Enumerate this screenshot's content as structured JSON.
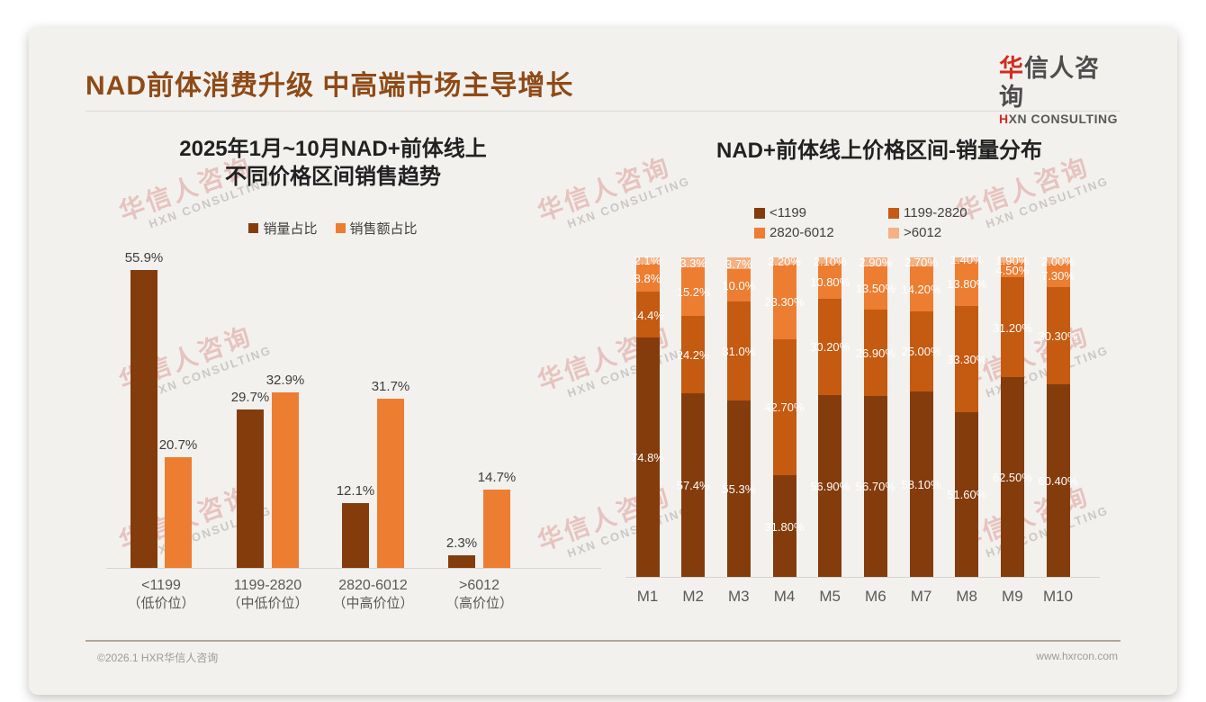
{
  "slide": {
    "title": "NAD前体消费升级 中高端市场主导增长",
    "logo": {
      "cn_first": "华",
      "cn_rest": "信人咨询",
      "en_first": "H",
      "en_rest": "XN CONSULTING"
    },
    "watermark": {
      "cn": "华信人咨询",
      "en": "HXN CONSULTING"
    },
    "footer": {
      "left": "©2026.1 HXR华信人咨询",
      "right": "www.hxrcon.com"
    }
  },
  "colors": {
    "title_brown": "#8e4a17",
    "logo_red": "#d22d21",
    "dark_brown": "#843C0C",
    "burnt_orange": "#C55A11",
    "orange": "#ED7D31",
    "light_orange": "#F4B183",
    "slide_bg": "#f2f1ee"
  },
  "chart_data": [
    {
      "type": "bar",
      "title": "2025年1月~10月NAD+前体线上\n不同价格区间销售趋势",
      "categories": [
        "<1199",
        "1199-2820",
        "2820-6012",
        ">6012"
      ],
      "category_tiers": [
        "（低价位）",
        "（中低价位）",
        "（中高价位）",
        "（高价位）"
      ],
      "ylim": [
        0,
        60
      ],
      "grid": false,
      "legend_position": "top",
      "series": [
        {
          "name": "销量占比",
          "color": "#843C0C",
          "values": [
            55.9,
            29.7,
            12.1,
            2.3
          ],
          "labels": [
            "55.9%",
            "29.7%",
            "12.1%",
            "2.3%"
          ]
        },
        {
          "name": "销售额占比",
          "color": "#ED7D31",
          "values": [
            20.7,
            32.9,
            31.7,
            14.7
          ],
          "labels": [
            "20.7%",
            "32.9%",
            "31.7%",
            "14.7%"
          ]
        }
      ]
    },
    {
      "type": "stacked-bar",
      "title": "NAD+前体线上价格区间-销量分布",
      "categories": [
        "M1",
        "M2",
        "M3",
        "M4",
        "M5",
        "M6",
        "M7",
        "M8",
        "M9",
        "M10"
      ],
      "ylim": [
        0,
        100
      ],
      "grid": false,
      "legend_position": "top",
      "series": [
        {
          "name": "<1199",
          "color": "#843C0C",
          "values": [
            74.8,
            57.4,
            55.3,
            31.8,
            56.9,
            56.7,
            58.1,
            51.6,
            62.5,
            60.4
          ],
          "labels": [
            "74.8%",
            "57.4%",
            "55.3%",
            "31.80%",
            "56.90%",
            "56.70%",
            "58.10%",
            "51.60%",
            "62.50%",
            "60.40%"
          ]
        },
        {
          "name": "1199-2820",
          "color": "#C55A11",
          "values": [
            14.4,
            24.2,
            31.0,
            42.7,
            30.2,
            26.9,
            25.0,
            33.3,
            31.2,
            30.3
          ],
          "labels": [
            "14.4%",
            "24.2%",
            "31.0%",
            "42.70%",
            "30.20%",
            "26.90%",
            "25.00%",
            "33.30%",
            "31.20%",
            "30.30%"
          ]
        },
        {
          "name": "2820-6012",
          "color": "#ED7D31",
          "values": [
            8.8,
            15.2,
            10.0,
            23.3,
            10.8,
            13.5,
            14.2,
            13.8,
            4.5,
            7.3
          ],
          "labels": [
            "8.8%",
            "15.2%",
            "10.0%",
            "23.30%",
            "10.80%",
            "13.50%",
            "14.20%",
            "13.80%",
            "4.50%",
            "7.30%"
          ]
        },
        {
          "name": ">6012",
          "color": "#F4B183",
          "values": [
            2.1,
            3.3,
            3.7,
            2.2,
            2.1,
            2.9,
            2.7,
            1.4,
            1.9,
            2.0
          ],
          "labels": [
            "2.1%",
            "3.3%",
            "3.7%",
            "2.20%",
            "2.10%",
            "2.90%",
            "2.70%",
            "1.40%",
            "1.90%",
            "2.00%"
          ]
        }
      ]
    }
  ]
}
